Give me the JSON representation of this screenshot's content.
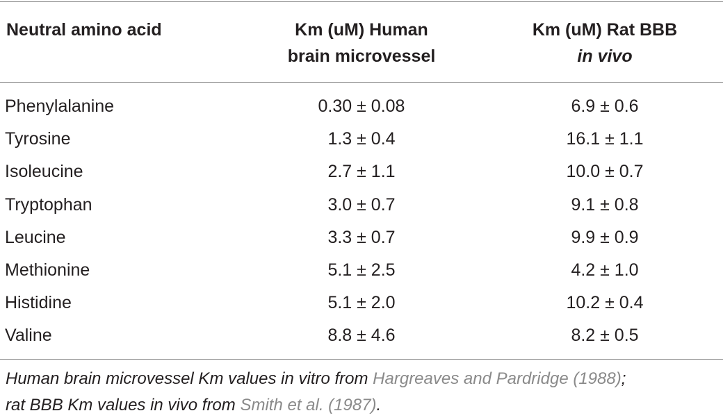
{
  "table": {
    "header": {
      "col1": "Neutral amino acid",
      "col2_line1": "Km (uM) Human",
      "col2_line2": "brain microvessel",
      "col3_line1": "Km (uM) Rat BBB",
      "col3_line2": "in vivo"
    },
    "rows": [
      {
        "acid": "Phenylalanine",
        "human": "0.30 ± 0.08",
        "rat": "6.9 ± 0.6"
      },
      {
        "acid": "Tyrosine",
        "human": "1.3 ± 0.4",
        "rat": "16.1 ± 1.1"
      },
      {
        "acid": "Isoleucine",
        "human": "2.7 ± 1.1",
        "rat": "10.0 ± 0.7"
      },
      {
        "acid": "Tryptophan",
        "human": "3.0 ± 0.7",
        "rat": "9.1 ± 0.8"
      },
      {
        "acid": "Leucine",
        "human": "3.3 ± 0.7",
        "rat": "9.9 ± 0.9"
      },
      {
        "acid": "Methionine",
        "human": "5.1 ± 2.5",
        "rat": "4.2 ± 1.0"
      },
      {
        "acid": "Histidine",
        "human": "5.1 ± 2.0",
        "rat": "10.2 ± 0.4"
      },
      {
        "acid": "Valine",
        "human": "8.8 ± 4.6",
        "rat": "8.2 ± 0.5"
      }
    ]
  },
  "footnote": {
    "text1": "Human brain microvessel Km values in vitro from ",
    "ref1": "Hargreaves and Pardridge (1988)",
    "text2": ";",
    "text3": "rat BBB Km values in vivo from ",
    "ref2": "Smith et al. (1987)",
    "text4": "."
  }
}
